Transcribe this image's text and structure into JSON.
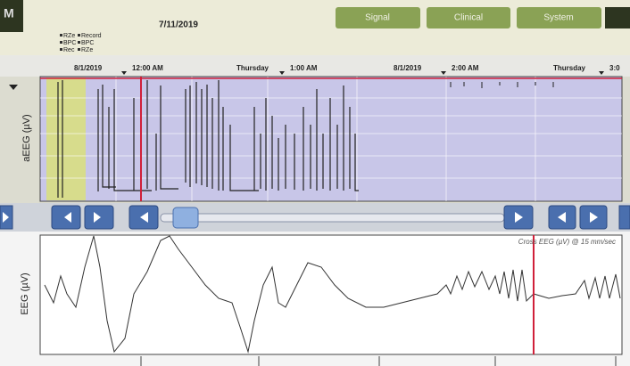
{
  "header": {
    "date": "7/11/2019",
    "legend": [
      "RZe",
      "Record",
      "BPC",
      "BPC",
      "Rec",
      "RZe"
    ]
  },
  "tabs": [
    "Signal",
    "Clinical",
    "System"
  ],
  "timeline": [
    "8/1/2019",
    "12:00 AM",
    "Thursday",
    "1:00 AM",
    "8/1/2019",
    "2:00 AM",
    "Thursday",
    "3:0"
  ],
  "aeeg": {
    "y_label": "aEEG (µV)"
  },
  "eeg": {
    "y_label": "EEG (µV)",
    "trace_label": "Cross EEG (µV) @ 15 mm/sec"
  }
}
